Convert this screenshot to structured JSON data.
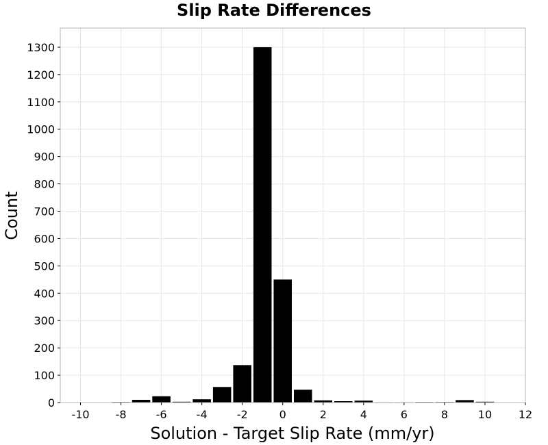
{
  "chart_data": {
    "type": "bar",
    "title": "Slip Rate Differences",
    "xlabel": "Solution - Target Slip Rate (mm/yr)",
    "ylabel": "Count",
    "xlim": [
      -11,
      12
    ],
    "ylim": [
      0,
      1370
    ],
    "xticks": [
      -10,
      -8,
      -6,
      -4,
      -2,
      0,
      2,
      4,
      6,
      8,
      10,
      12
    ],
    "yticks": [
      0,
      100,
      200,
      300,
      400,
      500,
      600,
      700,
      800,
      900,
      1000,
      1100,
      1200,
      1300
    ],
    "bin_width": 1,
    "bins": [
      {
        "x": -10,
        "value": 0
      },
      {
        "x": -9,
        "value": 0
      },
      {
        "x": -8,
        "value": 2
      },
      {
        "x": -7,
        "value": 10
      },
      {
        "x": -6,
        "value": 23
      },
      {
        "x": -5,
        "value": 3
      },
      {
        "x": -4,
        "value": 12
      },
      {
        "x": -3,
        "value": 57
      },
      {
        "x": -2,
        "value": 137
      },
      {
        "x": -1,
        "value": 1300
      },
      {
        "x": 0,
        "value": 450
      },
      {
        "x": 1,
        "value": 47
      },
      {
        "x": 2,
        "value": 8
      },
      {
        "x": 3,
        "value": 5
      },
      {
        "x": 4,
        "value": 7
      },
      {
        "x": 5,
        "value": 1
      },
      {
        "x": 6,
        "value": 1
      },
      {
        "x": 7,
        "value": 2
      },
      {
        "x": 8,
        "value": 2
      },
      {
        "x": 9,
        "value": 9
      },
      {
        "x": 10,
        "value": 3
      }
    ],
    "grid": true,
    "bar_color": "#000000",
    "grid_color": "#e6e6e6",
    "frame_color": "#b3b3b3"
  }
}
